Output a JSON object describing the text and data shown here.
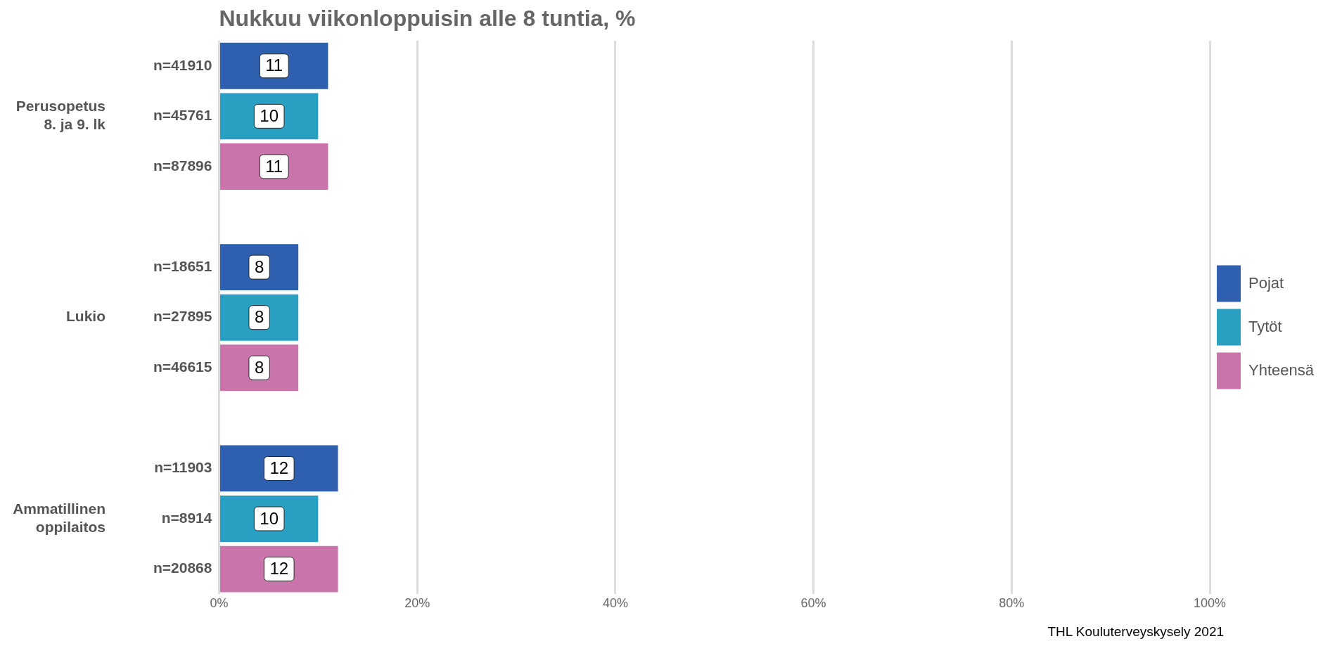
{
  "chart_data": {
    "type": "bar",
    "orientation": "horizontal",
    "stacked": true,
    "title": "Nukkuu viikonloppuisin alle 8 tuntia, %",
    "categories": [
      "n=41910",
      "n=45761",
      "n=87896",
      null,
      "n=18651",
      "n=27895",
      "n=46615",
      null,
      "n=11903",
      "n=8914",
      "n=20868"
    ],
    "series": [
      {
        "name": "Pojat",
        "color": "#2f5faf",
        "values": [
          11,
          null,
          null,
          null,
          8,
          null,
          null,
          null,
          12,
          null,
          null
        ]
      },
      {
        "name": "Tytöt",
        "color": "#29a0c1",
        "values": [
          null,
          10,
          null,
          null,
          null,
          8,
          null,
          null,
          null,
          10,
          null
        ]
      },
      {
        "name": "Yhteensä",
        "color": "#c975ac",
        "values": [
          null,
          null,
          11,
          null,
          null,
          null,
          8,
          null,
          null,
          null,
          12
        ]
      }
    ],
    "xlim": [
      0,
      100
    ],
    "xticks": [
      {
        "value": 0,
        "label": "0%"
      },
      {
        "value": 20,
        "label": "20%"
      },
      {
        "value": 40,
        "label": "40%"
      },
      {
        "value": 60,
        "label": "60%"
      },
      {
        "value": 80,
        "label": "80%"
      },
      {
        "value": 100,
        "label": "100%"
      }
    ],
    "grid": "x",
    "legend": "right",
    "data_labels": true,
    "annotations": [
      "Perusopetus\n8. ja 9. lk",
      "Lukio",
      "Ammatillinen\noppilaitos",
      "THL Kouluterveyskysely 2021"
    ]
  }
}
